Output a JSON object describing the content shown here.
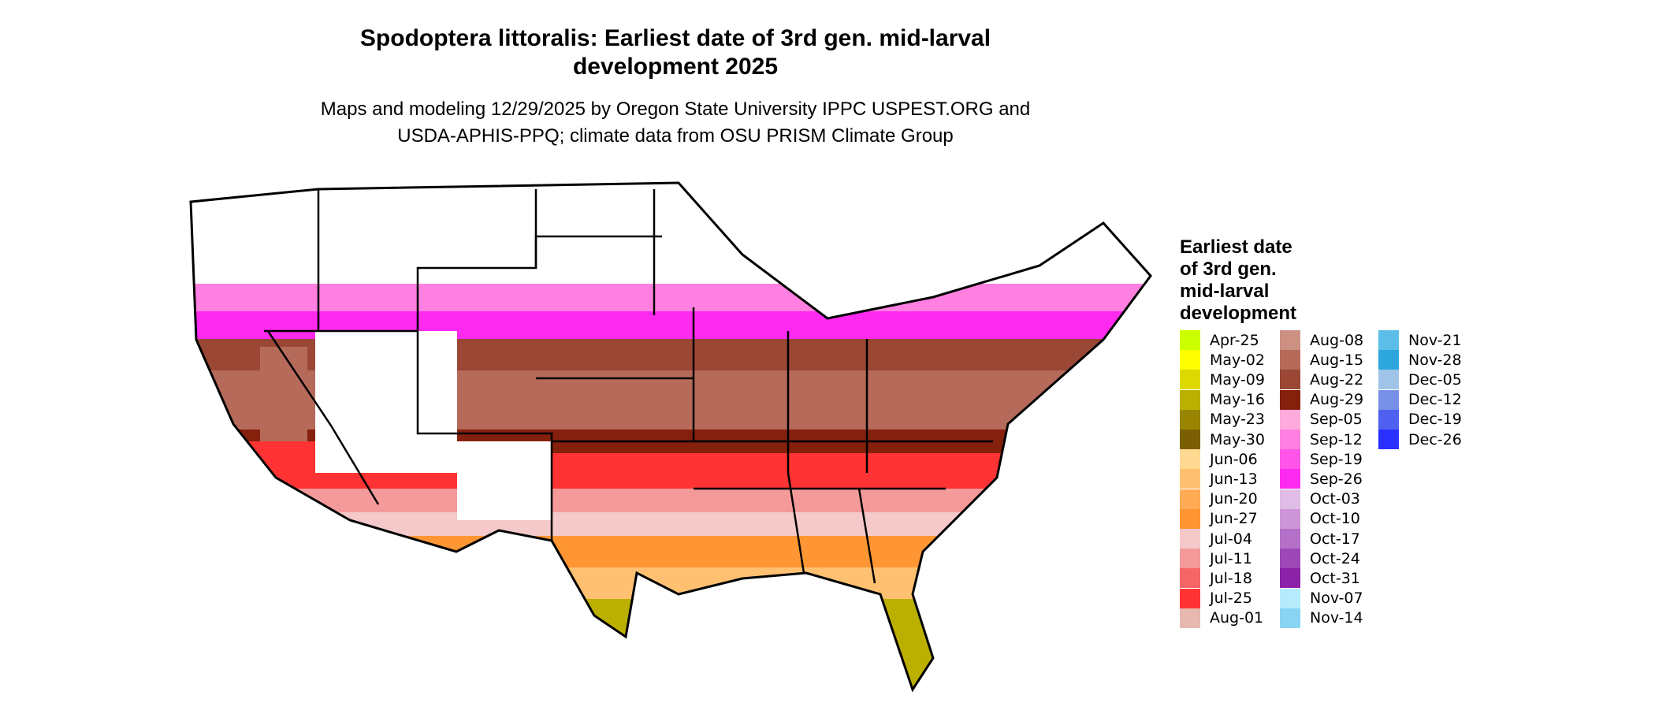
{
  "title_line1": "Spodoptera littoralis: Earliest date of 3rd gen. mid-larval",
  "title_line2": "development 2025",
  "subtitle_line1": "Maps and modeling 12/29/2025 by Oregon State University IPPC USPEST.ORG and",
  "subtitle_line2": "USDA-APHIS-PPQ; climate data from OSU PRISM Climate Group",
  "legend": {
    "title": "Earliest date of 3rd gen. mid-larval development",
    "items": [
      {
        "label": "Apr-25",
        "color": "#ccff00"
      },
      {
        "label": "May-02",
        "color": "#ffff00"
      },
      {
        "label": "May-09",
        "color": "#dcd900"
      },
      {
        "label": "May-16",
        "color": "#bbb000"
      },
      {
        "label": "May-23",
        "color": "#9a8500"
      },
      {
        "label": "May-30",
        "color": "#7a5f05"
      },
      {
        "label": "Jun-06",
        "color": "#ffd891"
      },
      {
        "label": "Jun-13",
        "color": "#ffc171"
      },
      {
        "label": "Jun-20",
        "color": "#ffaa55"
      },
      {
        "label": "Jun-27",
        "color": "#ff9633"
      },
      {
        "label": "Jul-04",
        "color": "#f5c9c9"
      },
      {
        "label": "Jul-11",
        "color": "#f49a9a"
      },
      {
        "label": "Jul-18",
        "color": "#f76666"
      },
      {
        "label": "Jul-25",
        "color": "#ff3333"
      },
      {
        "label": "Aug-01",
        "color": "#e6b8b0"
      },
      {
        "label": "Aug-08",
        "color": "#cc9183"
      },
      {
        "label": "Aug-15",
        "color": "#b56a5a"
      },
      {
        "label": "Aug-22",
        "color": "#9a4736"
      },
      {
        "label": "Aug-29",
        "color": "#85200d"
      },
      {
        "label": "Sep-05",
        "color": "#ffaadd"
      },
      {
        "label": "Sep-12",
        "color": "#ff80e0"
      },
      {
        "label": "Sep-19",
        "color": "#ff55e8"
      },
      {
        "label": "Sep-26",
        "color": "#ff2af0"
      },
      {
        "label": "Oct-03",
        "color": "#e0bde6"
      },
      {
        "label": "Oct-10",
        "color": "#cc96d6"
      },
      {
        "label": "Oct-17",
        "color": "#b570c8"
      },
      {
        "label": "Oct-24",
        "color": "#9e47b6"
      },
      {
        "label": "Oct-31",
        "color": "#8c22a8"
      },
      {
        "label": "Nov-07",
        "color": "#b5ebfa"
      },
      {
        "label": "Nov-14",
        "color": "#88d4f2"
      },
      {
        "label": "Nov-21",
        "color": "#5bbde8"
      },
      {
        "label": "Nov-28",
        "color": "#2ca6dc"
      },
      {
        "label": "Dec-05",
        "color": "#a0c4e8"
      },
      {
        "label": "Dec-12",
        "color": "#7890e8"
      },
      {
        "label": "Dec-19",
        "color": "#5060f0"
      },
      {
        "label": "Dec-26",
        "color": "#2a30ff"
      }
    ]
  }
}
